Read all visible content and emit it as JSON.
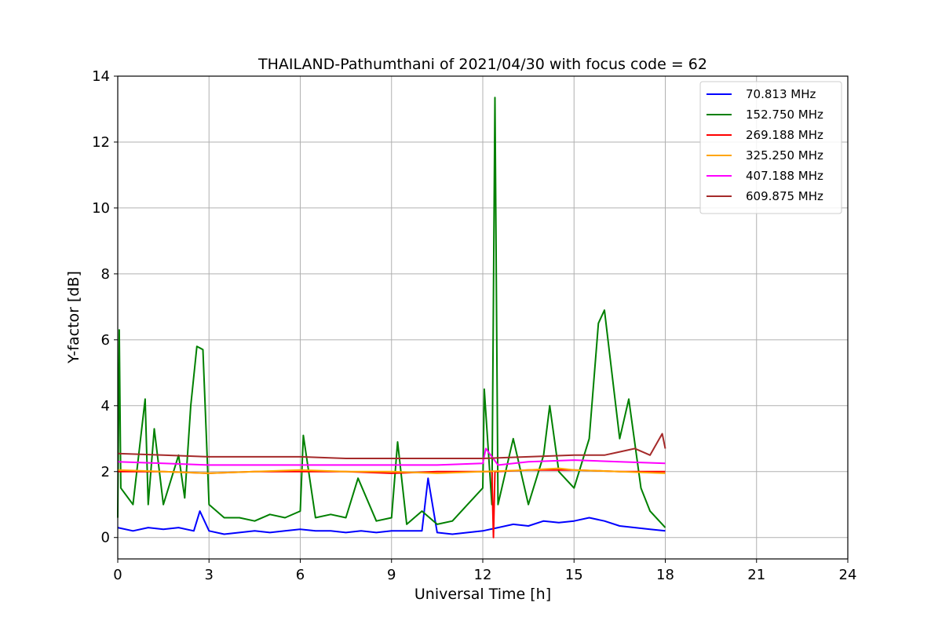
{
  "chart_data": {
    "type": "line",
    "title": "THAILAND-Pathumthani of 2021/04/30 with focus code = 62",
    "xlabel": "Universal Time [h]",
    "ylabel": "Y-factor [dB]",
    "xlim": [
      0,
      24
    ],
    "ylim": [
      -0.65,
      14
    ],
    "xticks": [
      0,
      3,
      6,
      9,
      12,
      15,
      18,
      21,
      24
    ],
    "yticks": [
      0,
      2,
      4,
      6,
      8,
      10,
      12,
      14
    ],
    "grid": true,
    "legend_position": "top-right",
    "series": [
      {
        "name": " 70.813 MHz",
        "color": "#0000ff",
        "x": [
          0,
          0.5,
          1.0,
          1.5,
          2.0,
          2.5,
          2.7,
          3.0,
          3.5,
          4.0,
          4.5,
          5.0,
          5.5,
          6.0,
          6.5,
          7.0,
          7.5,
          8.0,
          8.5,
          9.0,
          9.5,
          10.0,
          10.2,
          10.5,
          11.0,
          11.5,
          12.0,
          12.5,
          13.0,
          13.5,
          14.0,
          14.5,
          15.0,
          15.5,
          16.0,
          16.5,
          17.0,
          17.5,
          18.0
        ],
        "y": [
          0.3,
          0.2,
          0.3,
          0.25,
          0.3,
          0.2,
          0.8,
          0.2,
          0.1,
          0.15,
          0.2,
          0.15,
          0.2,
          0.25,
          0.2,
          0.2,
          0.15,
          0.2,
          0.15,
          0.2,
          0.2,
          0.2,
          1.8,
          0.15,
          0.1,
          0.15,
          0.2,
          0.3,
          0.4,
          0.35,
          0.5,
          0.45,
          0.5,
          0.6,
          0.5,
          0.35,
          0.3,
          0.25,
          0.2
        ]
      },
      {
        "name": "152.750 MHz",
        "color": "#008000",
        "x": [
          0,
          0.05,
          0.1,
          0.5,
          0.9,
          1.0,
          1.2,
          1.5,
          2.0,
          2.2,
          2.4,
          2.6,
          2.8,
          3.0,
          3.5,
          4.0,
          4.5,
          5.0,
          5.5,
          6.0,
          6.1,
          6.5,
          7.0,
          7.5,
          7.9,
          8.5,
          9.0,
          9.2,
          9.5,
          10.0,
          10.5,
          11.0,
          11.5,
          12.0,
          12.05,
          12.3,
          12.4,
          12.5,
          13.0,
          13.5,
          14.0,
          14.2,
          14.5,
          15.0,
          15.5,
          15.8,
          16.0,
          16.5,
          16.8,
          17.2,
          17.5,
          18.0
        ],
        "y": [
          0.6,
          6.3,
          1.5,
          1.0,
          4.2,
          1.0,
          3.3,
          1.0,
          2.5,
          1.2,
          4.0,
          5.8,
          5.7,
          1.0,
          0.6,
          0.6,
          0.5,
          0.7,
          0.6,
          0.8,
          3.1,
          0.6,
          0.7,
          0.6,
          1.8,
          0.5,
          0.6,
          2.9,
          0.4,
          0.8,
          0.4,
          0.5,
          1.0,
          1.5,
          4.5,
          1.0,
          13.35,
          1.0,
          3.0,
          1.0,
          2.5,
          4.0,
          2.0,
          1.5,
          3.0,
          6.5,
          6.9,
          3.0,
          4.2,
          1.5,
          0.8,
          0.3
        ]
      },
      {
        "name": "269.188 MHz",
        "color": "#ff0000",
        "x": [
          0,
          1.5,
          3.0,
          4.5,
          6.0,
          7.5,
          9.0,
          10.5,
          12.0,
          12.3,
          12.35,
          12.4,
          12.45,
          13.5,
          15.0,
          16.5,
          18.0
        ],
        "y": [
          2.0,
          2.0,
          1.95,
          2.0,
          2.0,
          2.0,
          1.95,
          2.0,
          2.0,
          2.0,
          0.0,
          2.0,
          2.0,
          2.05,
          2.05,
          2.0,
          2.0
        ]
      },
      {
        "name": "325.250 MHz",
        "color": "#ffa500",
        "x": [
          0,
          1.5,
          3.0,
          4.5,
          6.0,
          7.5,
          9.0,
          10.5,
          12.0,
          13.5,
          14.5,
          15.0,
          16.5,
          18.0
        ],
        "y": [
          2.05,
          2.0,
          1.95,
          2.0,
          2.05,
          2.0,
          2.0,
          1.95,
          2.0,
          2.05,
          2.1,
          2.05,
          2.0,
          1.95
        ]
      },
      {
        "name": "407.188 MHz",
        "color": "#ff00ff",
        "x": [
          0,
          1.5,
          3.0,
          4.5,
          6.0,
          7.5,
          9.0,
          10.5,
          12.0,
          12.1,
          12.5,
          13.5,
          15.0,
          16.5,
          18.0
        ],
        "y": [
          2.3,
          2.25,
          2.2,
          2.2,
          2.2,
          2.2,
          2.2,
          2.2,
          2.25,
          2.7,
          2.2,
          2.3,
          2.35,
          2.3,
          2.25
        ]
      },
      {
        "name": "609.875 MHz",
        "color": "#a52a2a",
        "x": [
          0,
          1.5,
          3.0,
          4.5,
          6.0,
          7.5,
          9.0,
          10.5,
          12.0,
          13.5,
          15.0,
          16.0,
          16.5,
          17.0,
          17.5,
          17.9,
          18.0
        ],
        "y": [
          2.55,
          2.5,
          2.45,
          2.45,
          2.45,
          2.4,
          2.4,
          2.4,
          2.4,
          2.45,
          2.5,
          2.5,
          2.6,
          2.7,
          2.5,
          3.15,
          2.7
        ]
      }
    ]
  }
}
